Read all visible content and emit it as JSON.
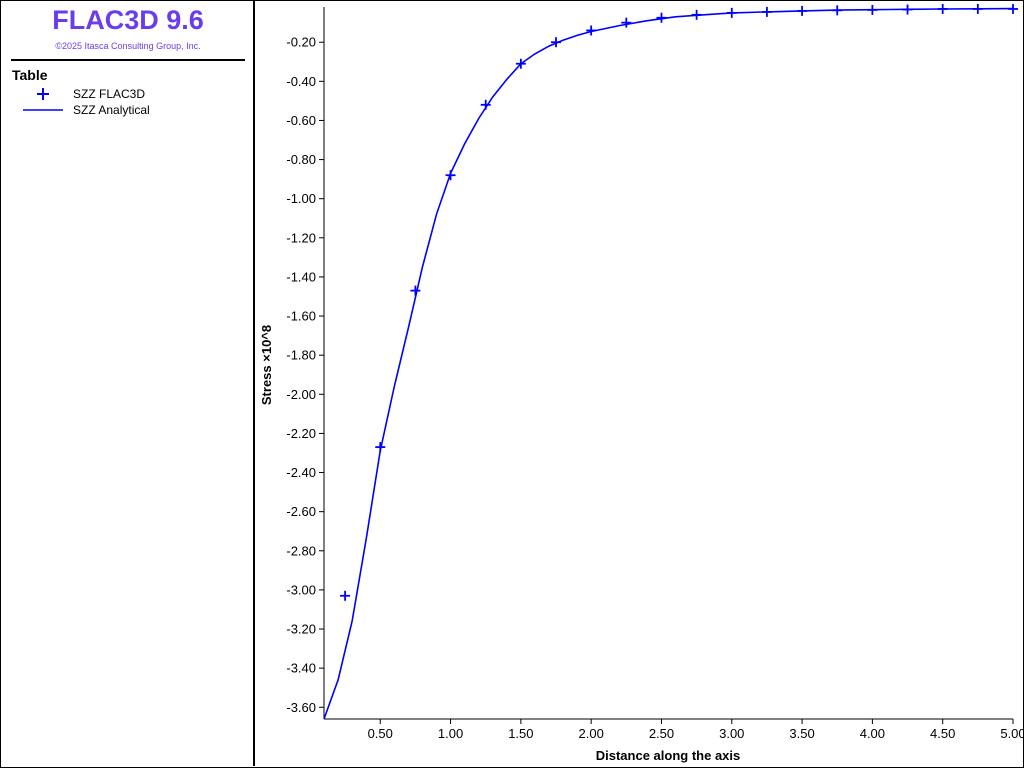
{
  "app": {
    "title": "FLAC3D 9.6",
    "copyright": "©2025 Itasca Consulting Group, Inc."
  },
  "legend": {
    "title": "Table",
    "items": [
      {
        "label": "SZZ FLAC3D",
        "marker": "plus"
      },
      {
        "label": "SZZ Analytical",
        "marker": "line"
      }
    ]
  },
  "colors": {
    "title": "#6a3cf0",
    "series": "#0000ff",
    "axis": "#000000"
  },
  "chart_data": {
    "type": "line",
    "xlabel": "Distance along the axis",
    "ylabel": "Stress ×10^8",
    "xlim": [
      0.1,
      5.0
    ],
    "ylim": [
      -3.66,
      -0.02
    ],
    "xticks": [
      0.5,
      1.0,
      1.5,
      2.0,
      2.5,
      3.0,
      3.5,
      4.0,
      4.5,
      5.0
    ],
    "xtick_labels": [
      "0.50",
      "1.00",
      "1.50",
      "2.00",
      "2.50",
      "3.00",
      "3.50",
      "4.00",
      "4.50",
      "5.00"
    ],
    "yticks": [
      -0.2,
      -0.4,
      -0.6,
      -0.8,
      -1.0,
      -1.2,
      -1.4,
      -1.6,
      -1.8,
      -2.0,
      -2.2,
      -2.4,
      -2.6,
      -2.8,
      -3.0,
      -3.2,
      -3.4,
      -3.6
    ],
    "ytick_labels": [
      "-0.20",
      "-0.40",
      "-0.60",
      "-0.80",
      "-1.00",
      "-1.20",
      "-1.40",
      "-1.60",
      "-1.80",
      "-2.00",
      "-2.20",
      "-2.40",
      "-2.60",
      "-2.80",
      "-3.00",
      "-3.20",
      "-3.40",
      "-3.60"
    ],
    "grid": false,
    "series": [
      {
        "name": "SZZ FLAC3D",
        "style": "markers",
        "x": [
          0.25,
          0.5,
          0.75,
          1.0,
          1.25,
          1.5,
          1.75,
          2.0,
          2.25,
          2.5,
          2.75,
          3.0,
          3.25,
          3.5,
          3.75,
          4.0,
          4.25,
          4.5,
          4.75,
          5.0
        ],
        "y": [
          -3.03,
          -2.27,
          -1.47,
          -0.88,
          -0.52,
          -0.31,
          -0.2,
          -0.14,
          -0.1,
          -0.075,
          -0.06,
          -0.05,
          -0.045,
          -0.04,
          -0.037,
          -0.035,
          -0.033,
          -0.03,
          -0.03,
          -0.03
        ]
      },
      {
        "name": "SZZ Analytical",
        "style": "line",
        "x": [
          0.1,
          0.2,
          0.3,
          0.4,
          0.5,
          0.6,
          0.7,
          0.8,
          0.9,
          1.0,
          1.1,
          1.2,
          1.3,
          1.4,
          1.5,
          1.6,
          1.7,
          1.8,
          1.9,
          2.0,
          2.2,
          2.4,
          2.6,
          2.8,
          3.0,
          3.25,
          3.5,
          3.75,
          4.0,
          4.25,
          4.5,
          4.75,
          5.0
        ],
        "y": [
          -3.66,
          -3.46,
          -3.16,
          -2.74,
          -2.29,
          -1.96,
          -1.66,
          -1.35,
          -1.08,
          -0.87,
          -0.72,
          -0.59,
          -0.48,
          -0.39,
          -0.31,
          -0.26,
          -0.22,
          -0.19,
          -0.165,
          -0.145,
          -0.115,
          -0.09,
          -0.07,
          -0.06,
          -0.05,
          -0.045,
          -0.04,
          -0.036,
          -0.034,
          -0.032,
          -0.03,
          -0.029,
          -0.028
        ]
      }
    ]
  }
}
